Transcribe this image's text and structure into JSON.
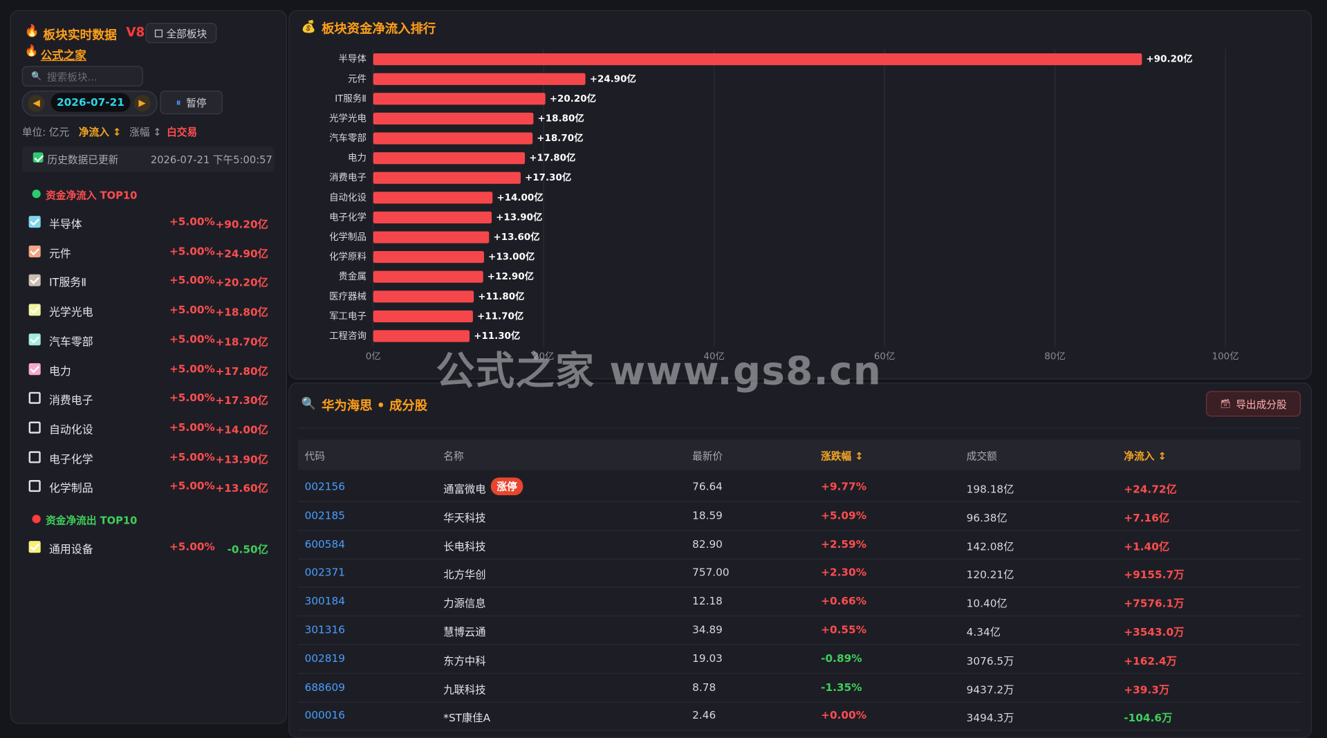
{
  "sidebar": {
    "title": "板块实时数据",
    "version": "V8",
    "all_button": "全部板块",
    "brand": "公式之家",
    "search_placeholder": "搜索板块...",
    "date": "2026-07-21",
    "pause_button": "暂停",
    "unit": "单位: 亿元",
    "sort_inflow": "净流入 ↕",
    "sort_change": "涨幅 ↕",
    "mode": "白交易",
    "history_label": "历史数据已更新",
    "update_time": "2026-07-21 下午5:00:57",
    "inflow_title": "资金净流入 TOP10",
    "inflow": [
      {
        "name": "半导体",
        "change": "+5.00%",
        "amount": "+90.20亿",
        "color": "#7fd6ec"
      },
      {
        "name": "元件",
        "change": "+5.00%",
        "amount": "+24.90亿",
        "color": "#f4a582"
      },
      {
        "name": "IT服务Ⅱ",
        "change": "+5.00%",
        "amount": "+20.20亿",
        "color": "#cbbcae"
      },
      {
        "name": "光学光电",
        "change": "+5.00%",
        "amount": "+18.80亿",
        "color": "#eef59e"
      },
      {
        "name": "汽车零部",
        "change": "+5.00%",
        "amount": "+18.70亿",
        "color": "#a3ecdc"
      },
      {
        "name": "电力",
        "change": "+5.00%",
        "amount": "+17.80亿",
        "color": "#f7a9c9"
      },
      {
        "name": "消费电子",
        "change": "+5.00%",
        "amount": "+17.30亿"
      },
      {
        "name": "自动化设",
        "change": "+5.00%",
        "amount": "+14.00亿"
      },
      {
        "name": "电子化学",
        "change": "+5.00%",
        "amount": "+13.90亿"
      },
      {
        "name": "化学制品",
        "change": "+5.00%",
        "amount": "+13.60亿"
      }
    ],
    "outflow_title": "资金净流出 TOP10",
    "outflow": [
      {
        "name": "通用设备",
        "change": "+5.00%",
        "amount": "-0.50亿",
        "color": "#f6f07a"
      }
    ]
  },
  "chart_data": {
    "type": "bar",
    "orientation": "horizontal",
    "title": "板块资金净流入排行",
    "categories": [
      "半导体",
      "元件",
      "IT服务Ⅱ",
      "光学光电",
      "汽车零部",
      "电力",
      "消费电子",
      "自动化设",
      "电子化学",
      "化学制品",
      "化学原料",
      "贵金属",
      "医疗器械",
      "军工电子",
      "工程咨询"
    ],
    "values": [
      90.2,
      24.9,
      20.2,
      18.8,
      18.7,
      17.8,
      17.3,
      14.0,
      13.9,
      13.6,
      13.0,
      12.9,
      11.8,
      11.7,
      11.3
    ],
    "value_labels": [
      "+90.20亿",
      "+24.90亿",
      "+20.20亿",
      "+18.80亿",
      "+18.70亿",
      "+17.80亿",
      "+17.30亿",
      "+14.00亿",
      "+13.90亿",
      "+13.60亿",
      "+13.00亿",
      "+12.90亿",
      "+11.80亿",
      "+11.70亿",
      "+11.30亿"
    ],
    "color": "#f5474b",
    "xlim": [
      0,
      100
    ],
    "xticks": [
      {
        "value": 0,
        "label": "0亿"
      },
      {
        "value": 20,
        "label": "20亿"
      },
      {
        "value": 40,
        "label": "40亿"
      },
      {
        "value": 60,
        "label": "60亿"
      },
      {
        "value": 80,
        "label": "80亿"
      },
      {
        "value": 100,
        "label": "100亿"
      }
    ],
    "grid": true
  },
  "table": {
    "title": "华为海思 • 成分股",
    "export_button": "导出成分股",
    "headers": [
      "代码",
      "名称",
      "最新价",
      "涨跌幅 ↕",
      "成交额",
      "净流入 ↕"
    ],
    "rows": [
      {
        "code": "002156",
        "name": "通富微电",
        "tag": "涨停",
        "price": "76.64",
        "change": "+9.77%",
        "amount": "198.18亿",
        "inflow": "+24.72亿"
      },
      {
        "code": "002185",
        "name": "华天科技",
        "price": "18.59",
        "change": "+5.09%",
        "amount": "96.38亿",
        "inflow": "+7.16亿"
      },
      {
        "code": "600584",
        "name": "长电科技",
        "price": "82.90",
        "change": "+2.59%",
        "amount": "142.08亿",
        "inflow": "+1.40亿"
      },
      {
        "code": "002371",
        "name": "北方华创",
        "price": "757.00",
        "change": "+2.30%",
        "amount": "120.21亿",
        "inflow": "+9155.7万"
      },
      {
        "code": "300184",
        "name": "力源信息",
        "price": "12.18",
        "change": "+0.66%",
        "amount": "10.40亿",
        "inflow": "+7576.1万"
      },
      {
        "code": "301316",
        "name": "慧博云通",
        "price": "34.89",
        "change": "+0.55%",
        "amount": "4.34亿",
        "inflow": "+3543.0万"
      },
      {
        "code": "002819",
        "name": "东方中科",
        "price": "19.03",
        "change": "-0.89%",
        "amount": "3076.5万",
        "inflow": "+162.4万"
      },
      {
        "code": "688609",
        "name": "九联科技",
        "price": "8.78",
        "change": "-1.35%",
        "amount": "9437.2万",
        "inflow": "+39.3万"
      },
      {
        "code": "000016",
        "name": "*ST康佳A",
        "price": "2.46",
        "change": "+0.00%",
        "amount": "3494.3万",
        "inflow": "-104.6万"
      }
    ]
  },
  "watermark": "公式之家 www.gs8.cn"
}
